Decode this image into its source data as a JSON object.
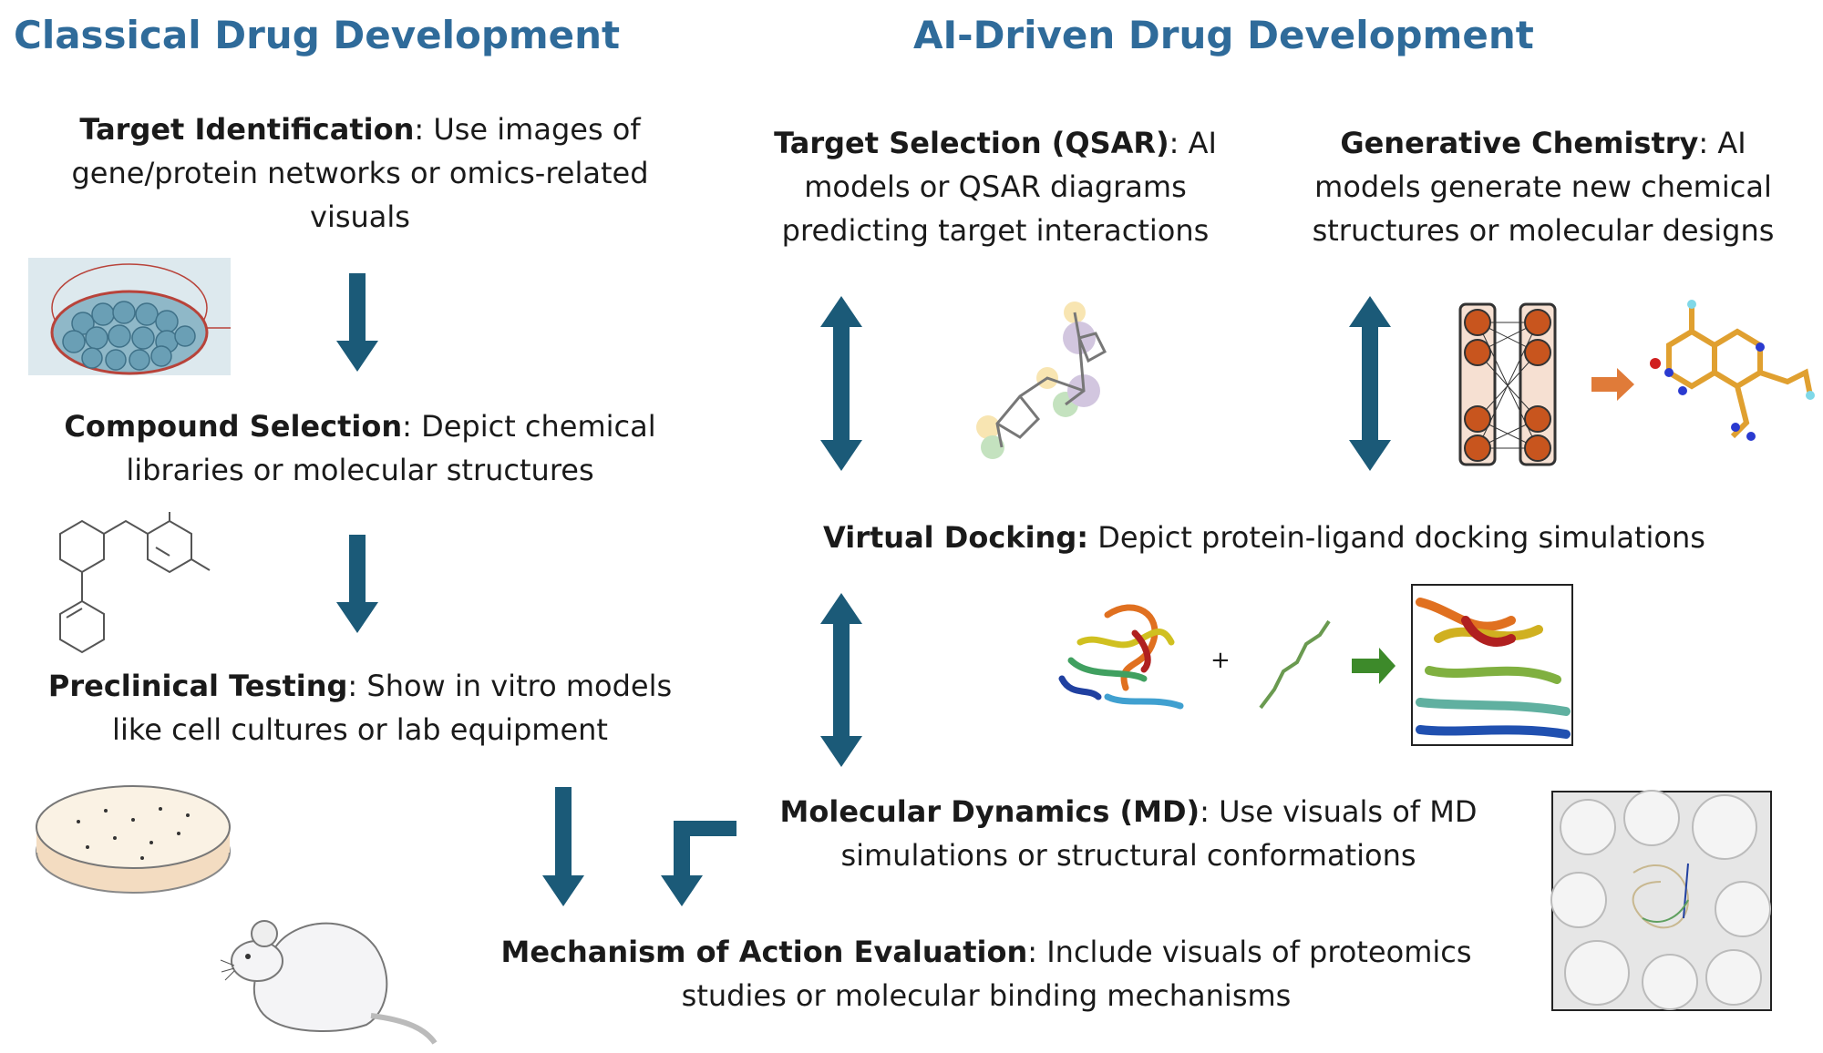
{
  "classical": {
    "title": "Classical Drug Development",
    "steps": [
      {
        "label": "Target Identification",
        "text": ": Use images of gene/protein networks or omics-related visuals"
      },
      {
        "label": "Compound Selection",
        "text": ": Depict chemical libraries or molecular structures"
      },
      {
        "label": "Preclinical Testing",
        "text": ": Show in vitro models like cell cultures or lab equipment"
      }
    ]
  },
  "ai": {
    "title": "AI-Driven Drug Development",
    "steps": [
      {
        "label": "Target Selection (QSAR)",
        "text": ": AI models or QSAR diagrams predicting target interactions"
      },
      {
        "label": "Generative Chemistry",
        "text": ": AI models generate new chemical structures or molecular designs"
      },
      {
        "label": "Virtual Docking:",
        "text": " Depict protein-ligand docking simulations"
      },
      {
        "label": "Molecular Dynamics (MD)",
        "text": ": Use visuals of MD simulations or structural conformations"
      }
    ]
  },
  "shared": {
    "label": "Mechanism of Action Evaluation",
    "text": ": Include visuals of proteomics studies or molecular binding mechanisms"
  },
  "docking_plus": "+",
  "colors": {
    "title": "#2f6b9a",
    "arrow": "#1b5a78",
    "orange": "#e07b39",
    "green": "#3d8a2a",
    "node": "#c8551e"
  }
}
